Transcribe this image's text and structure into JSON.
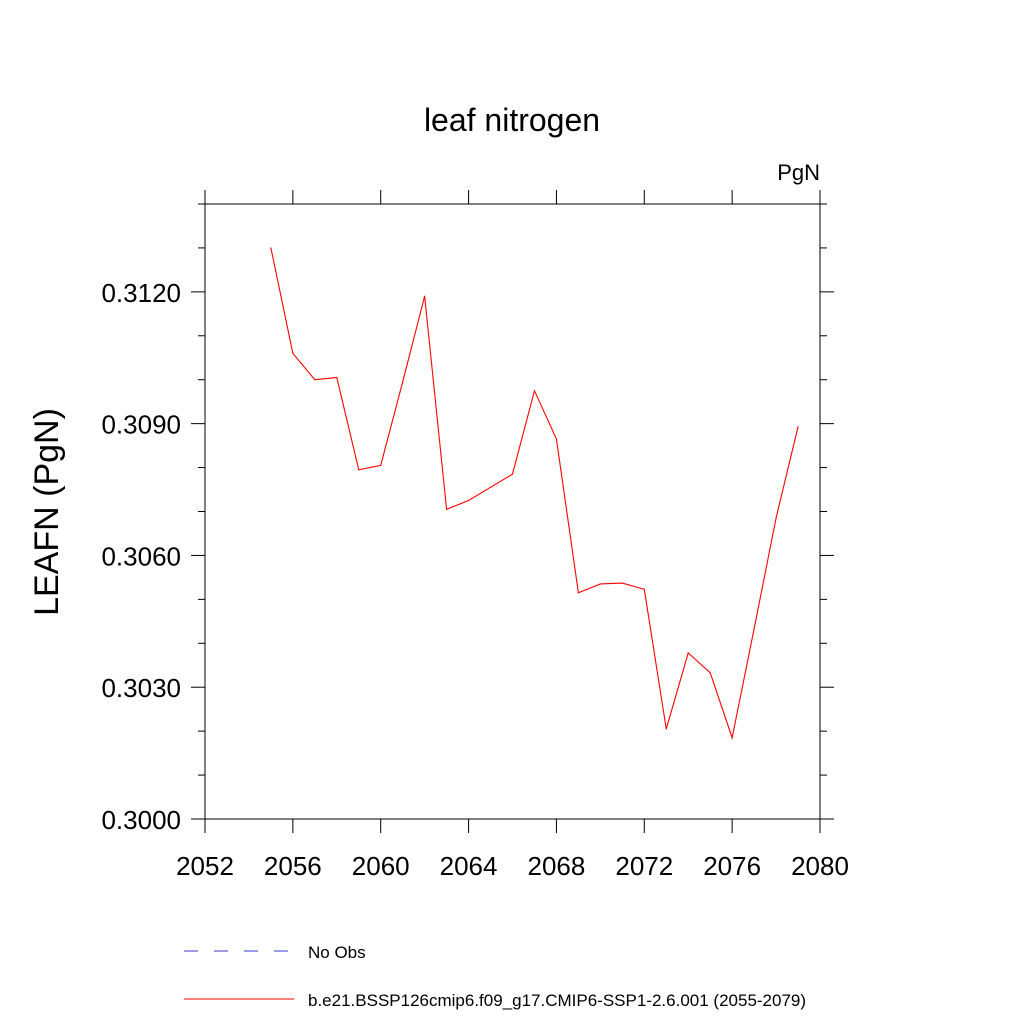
{
  "chart_data": {
    "type": "line",
    "title": "leaf nitrogen",
    "subtitle": "PgN",
    "xlabel": "",
    "ylabel": "LEAFN  (PgN)",
    "xlim": [
      2052,
      2080
    ],
    "ylim": [
      0.3,
      0.314
    ],
    "x_ticks": [
      {
        "value": 2052,
        "label": "2052"
      },
      {
        "value": 2056,
        "label": "2056"
      },
      {
        "value": 2060,
        "label": "2060"
      },
      {
        "value": 2064,
        "label": "2064"
      },
      {
        "value": 2068,
        "label": "2068"
      },
      {
        "value": 2072,
        "label": "2072"
      },
      {
        "value": 2076,
        "label": "2076"
      },
      {
        "value": 2080,
        "label": "2080"
      }
    ],
    "y_ticks": [
      {
        "value": 0.3,
        "label": "0.3000"
      },
      {
        "value": 0.303,
        "label": "0.3030"
      },
      {
        "value": 0.306,
        "label": "0.3060"
      },
      {
        "value": 0.309,
        "label": "0.3090"
      },
      {
        "value": 0.312,
        "label": "0.3120"
      }
    ],
    "grid": false,
    "legend_position": "bottom",
    "series": [
      {
        "name": "No Obs",
        "color": "#3b3bcf",
        "style": "dashed",
        "x": [],
        "y": []
      },
      {
        "name": "b.e21.BSSP126cmip6.f09_g17.CMIP6-SSP1-2.6.001 (2055-2079)",
        "color": "#ff0000",
        "style": "solid",
        "x": [
          2055,
          2056,
          2057,
          2058,
          2059,
          2060,
          2061,
          2062,
          2063,
          2064,
          2065,
          2066,
          2067,
          2068,
          2069,
          2070,
          2071,
          2072,
          2073,
          2074,
          2075,
          2076,
          2077,
          2078,
          2079
        ],
        "y": [
          0.313,
          0.3106,
          0.31,
          0.31005,
          0.30795,
          0.30805,
          0.30995,
          0.3119,
          0.30705,
          0.30725,
          0.30755,
          0.30785,
          0.30975,
          0.30865,
          0.30515,
          0.30535,
          0.30537,
          0.30523,
          0.30205,
          0.30378,
          0.30333,
          0.30185,
          0.30433,
          0.30685,
          0.30893
        ]
      }
    ]
  }
}
